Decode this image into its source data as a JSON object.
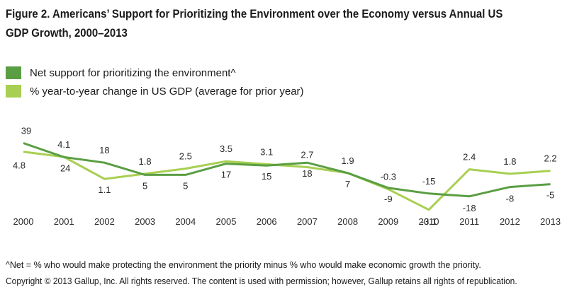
{
  "figure": {
    "title_line1": "Figure 2. Americans’ Support for Prioritizing the Environment over the Economy versus Annual US",
    "title_line2": "GDP Growth, 2000–2013",
    "footnote": "^Net = % who would make protecting the environment the priority minus % who would make economic growth the priority.",
    "copyright": "Copyright © 2013 Gallup, Inc. All rights reserved. The content is used with permission; however, Gallup retains all rights of republication."
  },
  "colors": {
    "net_support": "#5a9e43",
    "gdp_change": "#a8cf52"
  },
  "chart_data": {
    "type": "line",
    "x": [
      "2000",
      "2001",
      "2002",
      "2003",
      "2004",
      "2005",
      "2006",
      "2007",
      "2008",
      "2009",
      "2010",
      "2011",
      "2012",
      "2013"
    ],
    "series": [
      {
        "name": "Net support for prioritizing the environment^",
        "values": [
          39,
          24,
          18,
          5,
          5,
          17,
          15,
          18,
          7,
          -9,
          -15,
          -18,
          -8,
          -5
        ],
        "labels": [
          "39",
          "24",
          "18",
          "5",
          "5",
          "17",
          "15",
          "18",
          "7",
          "-9",
          "-15",
          "-18",
          "-8",
          "-5"
        ]
      },
      {
        "name": "% year-to-year change in US GDP (average for prior year)",
        "values": [
          4.8,
          4.1,
          1.1,
          1.8,
          2.5,
          3.5,
          3.1,
          2.7,
          1.9,
          -0.3,
          -3.1,
          2.4,
          1.8,
          2.2
        ],
        "labels": [
          "4.8",
          "4.1",
          "1.1",
          "1.8",
          "2.5",
          "3.5",
          "3.1",
          "2.7",
          "1.9",
          "-0.3",
          "-3.1",
          "2.4",
          "1.8",
          "2.2"
        ]
      }
    ],
    "legend_position": "top-left",
    "grid": false
  }
}
